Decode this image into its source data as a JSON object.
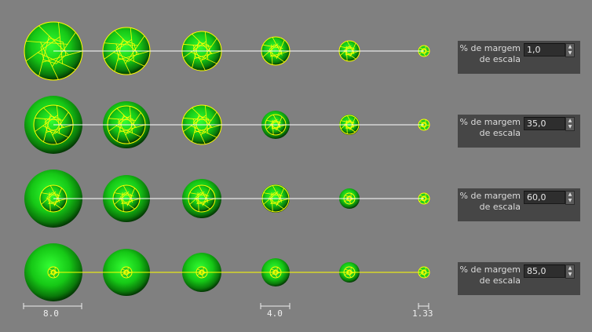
{
  "colors": {
    "background": "#808080",
    "sphere": "#22cc22",
    "wireframe": "#ffff00",
    "panel": "#464646"
  },
  "rows": [
    {
      "margin_label": "% de margem de escala",
      "label_line1": "% de margem",
      "label_line2": "de escala",
      "value": "1,0",
      "line_color": "#ffffff"
    },
    {
      "margin_label": "% de margem de escala",
      "label_line1": "% de margem",
      "label_line2": "de escala",
      "value": "35,0",
      "line_color": "#ffffff"
    },
    {
      "margin_label": "% de margem de escala",
      "label_line1": "% de margem",
      "label_line2": "de escala",
      "value": "60,0",
      "line_color": "#ffffff"
    },
    {
      "margin_label": "% de margem de escala",
      "label_line1": "% de margem",
      "label_line2": "de escala",
      "value": "85,0",
      "line_color": "#ffff00"
    }
  ],
  "scales": [
    {
      "label": "8.0"
    },
    {
      "label": "4.0"
    },
    {
      "label": "1.33"
    }
  ],
  "icons": {
    "spinner": "spinner-up-down-icon"
  }
}
